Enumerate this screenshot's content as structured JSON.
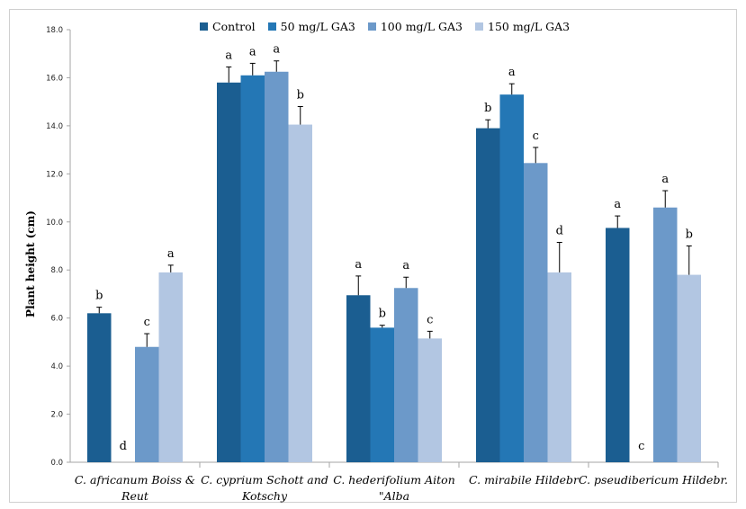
{
  "chart_data": {
    "type": "bar",
    "ylabel": "Plant height (cm)",
    "ylim": [
      0,
      18
    ],
    "yticks": [
      "0.0",
      "2.0",
      "4.0",
      "6.0",
      "8.0",
      "10.0",
      "12.0",
      "14.0",
      "16.0",
      "18.0"
    ],
    "categories": [
      [
        "C. africanum Boiss &",
        "Reut"
      ],
      [
        "C. cyprium Schott and",
        "Kotschy"
      ],
      [
        "C. hederifolium Aiton",
        "\"Alba"
      ],
      [
        "C. mirabile Hildebr"
      ],
      [
        "C. pseudibericum Hildebr."
      ]
    ],
    "series": [
      {
        "name": "Control",
        "color": "#1b5e91",
        "values": [
          6.2,
          15.8,
          6.95,
          13.9,
          9.75
        ],
        "errors": [
          0.25,
          0.65,
          0.8,
          0.35,
          0.5
        ],
        "letters": [
          "b",
          "a",
          "a",
          "b",
          "a"
        ]
      },
      {
        "name": "50 mg/L GA3",
        "color": "#2477b5",
        "values": [
          0,
          16.1,
          5.6,
          15.3,
          0
        ],
        "errors": [
          0,
          0.5,
          0.1,
          0.45,
          0
        ],
        "letters": [
          "d",
          "a",
          "b",
          "a",
          "c"
        ]
      },
      {
        "name": "100 mg/L GA3",
        "color": "#6c99c9",
        "values": [
          4.8,
          16.25,
          7.25,
          12.45,
          10.6
        ],
        "errors": [
          0.55,
          0.45,
          0.45,
          0.65,
          0.7
        ],
        "letters": [
          "c",
          "a",
          "a",
          "c",
          "a"
        ]
      },
      {
        "name": "150 mg/L GA3",
        "color": "#b2c6e2",
        "values": [
          7.9,
          14.05,
          5.15,
          7.9,
          7.8
        ],
        "errors": [
          0.3,
          0.75,
          0.3,
          1.25,
          1.2
        ],
        "letters": [
          "a",
          "b",
          "c",
          "d",
          "b"
        ]
      }
    ],
    "legend_position": "top",
    "grid": false
  }
}
